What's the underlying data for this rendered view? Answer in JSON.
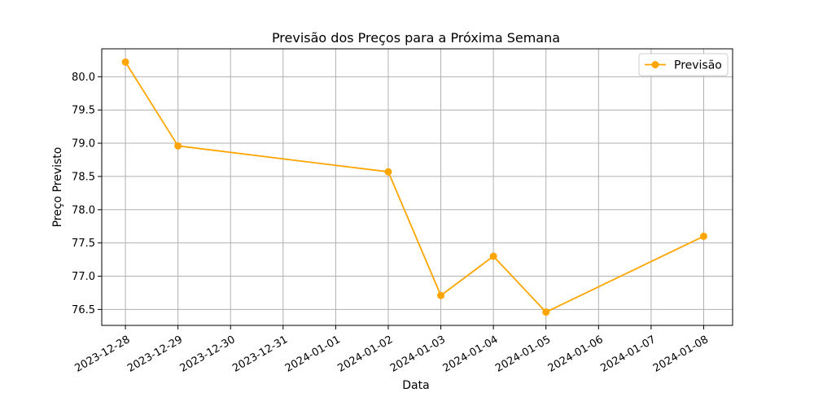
{
  "chart_data": {
    "type": "line",
    "title": "Previsão dos Preços para a Próxima Semana",
    "xlabel": "Data",
    "ylabel": "Preço Previsto",
    "x_ticks": [
      "2023-12-28",
      "2023-12-29",
      "2023-12-30",
      "2023-12-31",
      "2024-01-01",
      "2024-01-02",
      "2024-01-03",
      "2024-01-04",
      "2024-01-05",
      "2024-01-06",
      "2024-01-07",
      "2024-01-08"
    ],
    "y_ticks": [
      "76.5",
      "77.0",
      "77.5",
      "78.0",
      "78.5",
      "79.0",
      "79.5",
      "80.0"
    ],
    "xlim": [
      "2023-12-27",
      "2024-01-08"
    ],
    "ylim": [
      76.26,
      80.42
    ],
    "grid": true,
    "legend_position": "top-right",
    "series": [
      {
        "name": "Previsão",
        "color": "#ffa500",
        "x": [
          "2023-12-28",
          "2023-12-29",
          "2024-01-02",
          "2024-01-03",
          "2024-01-04",
          "2024-01-05",
          "2024-01-08"
        ],
        "y": [
          80.22,
          78.96,
          78.57,
          76.71,
          77.3,
          76.46,
          77.6
        ]
      }
    ]
  }
}
